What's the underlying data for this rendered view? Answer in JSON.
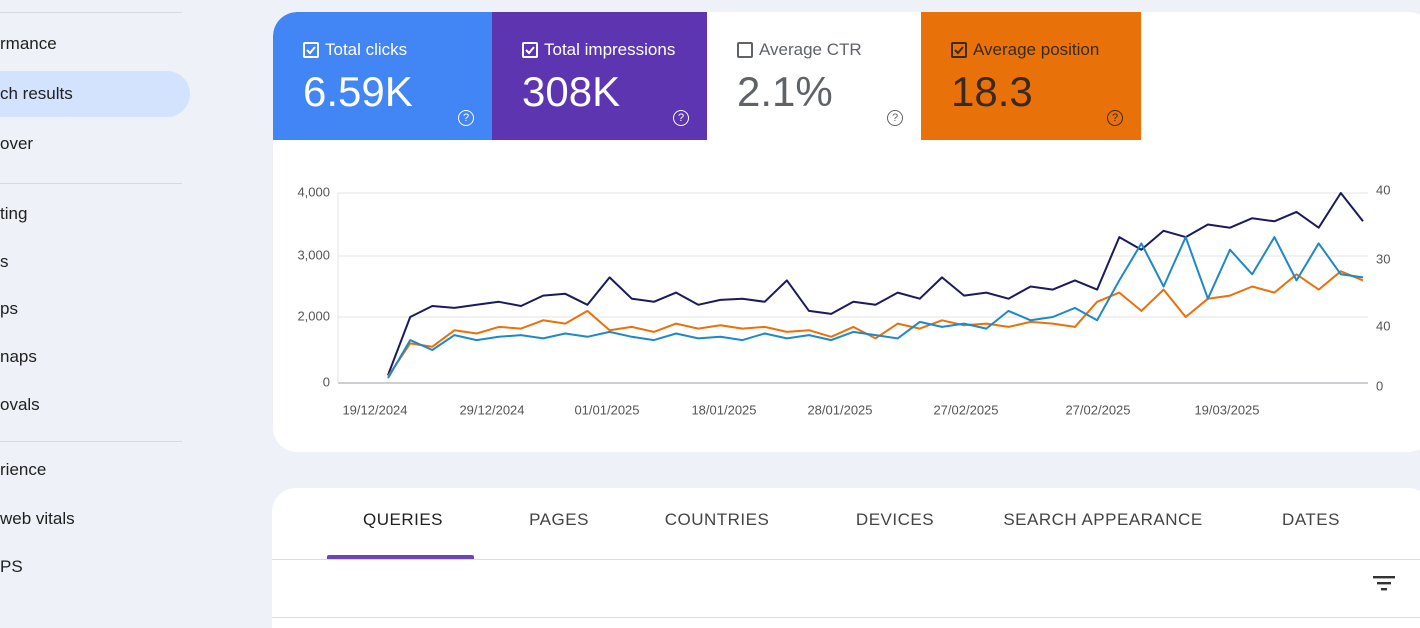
{
  "sidebar": {
    "items": [
      "rmance",
      "ch results",
      "over",
      "ting",
      "s",
      "ps",
      "naps",
      "ovals",
      "rience",
      " web vitals",
      "PS"
    ],
    "selected": 1
  },
  "metrics": [
    {
      "label": "Total clicks",
      "value": "6.59K",
      "checked": true,
      "color": "#4285f4"
    },
    {
      "label": "Total impressions",
      "value": "308K",
      "checked": true,
      "color": "#5e35b1"
    },
    {
      "label": "Average CTR",
      "value": "2.1%",
      "checked": false,
      "color": "#ffffff"
    },
    {
      "label": "Average position",
      "value": "18.3",
      "checked": true,
      "color": "#e8710a"
    }
  ],
  "chart_data": {
    "type": "line",
    "yticks": [
      {
        "value": 0,
        "label": "0"
      },
      {
        "value": 2000,
        "label": "2,000"
      },
      {
        "value": 3000,
        "label": "3,000"
      },
      {
        "value": 4000,
        "label": "4,000"
      }
    ],
    "ylim": [
      0,
      4000
    ],
    "y2_labels": [
      "0",
      "40",
      "30",
      "40"
    ],
    "x_labels": [
      "19/12/2024",
      "29/12/2024",
      "01/01/2025",
      "18/01/2025",
      "28/01/2025",
      "27/02/2025",
      "27/02/2025",
      "19/03/2025"
    ],
    "grid": true,
    "series": [
      {
        "color": "#1a1a5e",
        "values": [
          240,
          2000,
          2180,
          2150,
          2200,
          2250,
          2180,
          2350,
          2380,
          2200,
          2650,
          2300,
          2250,
          2400,
          2200,
          2280,
          2300,
          2250,
          2600,
          2100,
          2050,
          2250,
          2200,
          2400,
          2300,
          2650,
          2350,
          2400,
          2300,
          2500,
          2450,
          2600,
          2450,
          3300,
          3100,
          3400,
          3300,
          3500,
          3450,
          3600,
          3550,
          3700,
          3450,
          4000,
          3550
        ]
      },
      {
        "color": "#e8710a",
        "values": [
          200,
          1200,
          1100,
          1600,
          1500,
          1700,
          1650,
          1900,
          1800,
          2100,
          1600,
          1700,
          1550,
          1800,
          1650,
          1750,
          1650,
          1700,
          1550,
          1600,
          1400,
          1700,
          1350,
          1800,
          1650,
          1900,
          1750,
          1800,
          1700,
          1850,
          1800,
          1700,
          2250,
          2400,
          2100,
          2450,
          2000,
          2300,
          2350,
          2500,
          2400,
          2700,
          2450,
          2750,
          2600
        ]
      },
      {
        "color": "#1e88c8",
        "values": [
          150,
          1300,
          1000,
          1450,
          1300,
          1400,
          1450,
          1350,
          1500,
          1400,
          1550,
          1400,
          1300,
          1500,
          1350,
          1400,
          1300,
          1500,
          1350,
          1450,
          1300,
          1550,
          1450,
          1350,
          1850,
          1700,
          1800,
          1650,
          2100,
          1900,
          2000,
          2150,
          1900,
          2600,
          3200,
          2500,
          3300,
          2300,
          3100,
          2700,
          3300,
          2600,
          3200,
          2700,
          2650
        ]
      }
    ]
  },
  "tabs": {
    "items": [
      "QUERIES",
      "PAGES",
      "COUNTRIES",
      "DEVICES",
      "SEARCH APPEARANCE",
      "DATES"
    ],
    "selected": 0
  }
}
